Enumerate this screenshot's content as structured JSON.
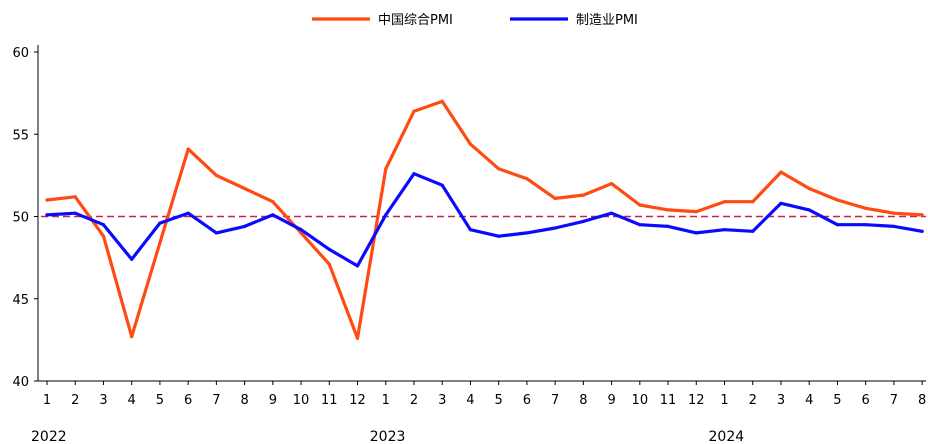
{
  "chart_data": {
    "type": "line",
    "title": "",
    "xlabel": "",
    "ylabel": "",
    "ylim": [
      40,
      60
    ],
    "yticks": [
      40,
      45,
      50,
      55,
      60
    ],
    "grid": false,
    "legend_position": "top-center",
    "years": [
      {
        "label": "2022",
        "start_index": 0
      },
      {
        "label": "2023",
        "start_index": 12
      },
      {
        "label": "2024",
        "start_index": 24
      }
    ],
    "categories": [
      "1",
      "2",
      "3",
      "4",
      "5",
      "6",
      "7",
      "8",
      "9",
      "10",
      "11",
      "12",
      "1",
      "2",
      "3",
      "4",
      "5",
      "6",
      "7",
      "8",
      "9",
      "10",
      "11",
      "12",
      "1",
      "2",
      "3",
      "4",
      "5",
      "6",
      "7",
      "8"
    ],
    "reference_line": {
      "value": 50,
      "color": "#c0284a",
      "style": "dashed"
    },
    "series": [
      {
        "name": "中国综合PMI",
        "color": "#ff4a12",
        "values": [
          51.0,
          51.2,
          48.8,
          42.7,
          48.4,
          54.1,
          52.5,
          51.7,
          50.9,
          49.0,
          47.1,
          42.6,
          52.9,
          56.4,
          57.0,
          54.4,
          52.9,
          52.3,
          51.1,
          51.3,
          52.0,
          50.7,
          50.4,
          50.3,
          50.9,
          50.9,
          52.7,
          51.7,
          51.0,
          50.5,
          50.2,
          50.1
        ]
      },
      {
        "name": "制造业PMI",
        "color": "#0a0aff",
        "values": [
          50.1,
          50.2,
          49.5,
          47.4,
          49.6,
          50.2,
          49.0,
          49.4,
          50.1,
          49.2,
          48.0,
          47.0,
          50.1,
          52.6,
          51.9,
          49.2,
          48.8,
          49.0,
          49.3,
          49.7,
          50.2,
          49.5,
          49.4,
          49.0,
          49.2,
          49.1,
          50.8,
          50.4,
          49.5,
          49.5,
          49.4,
          49.1
        ]
      }
    ]
  }
}
